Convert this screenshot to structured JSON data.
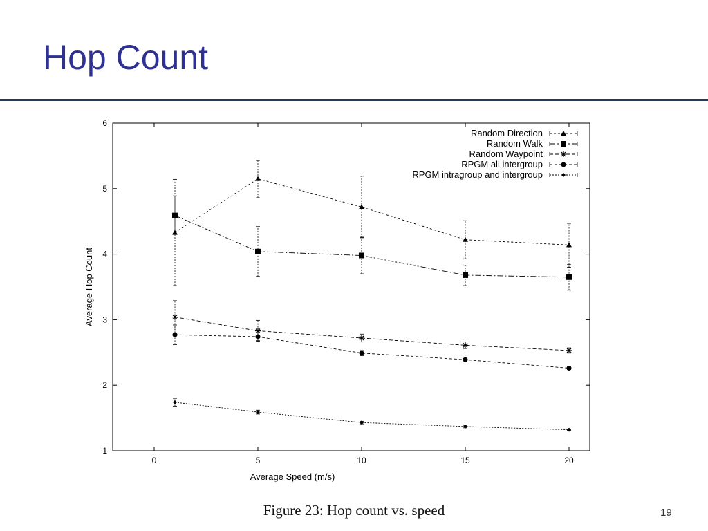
{
  "slide": {
    "title": "Hop Count",
    "caption": "Figure 23: Hop count vs. speed",
    "page_number": "19",
    "title_color": "#2e3192"
  },
  "chart_data": {
    "type": "line",
    "xlabel": "Average Speed (m/s)",
    "ylabel": "Average Hop Count",
    "xlim": [
      -2,
      21
    ],
    "ylim": [
      1,
      6
    ],
    "xticks": [
      0,
      5,
      10,
      15,
      20
    ],
    "yticks": [
      1,
      2,
      3,
      4,
      5,
      6
    ],
    "grid": false,
    "legend_position": "top-right",
    "x": [
      1,
      5,
      10,
      15,
      20
    ],
    "series": [
      {
        "name": "Random Direction",
        "marker": "triangle",
        "dash": "3,3",
        "values": [
          4.33,
          5.15,
          4.72,
          4.22,
          4.14
        ],
        "err_low": [
          3.52,
          4.86,
          4.25,
          3.93,
          3.8
        ],
        "err_high": [
          5.14,
          5.43,
          5.19,
          4.51,
          4.47
        ]
      },
      {
        "name": "Random Walk",
        "marker": "square",
        "dash": "8,3,2,3",
        "values": [
          4.59,
          4.04,
          3.98,
          3.68,
          3.65
        ],
        "err_low": [
          4.3,
          3.66,
          3.7,
          3.52,
          3.45
        ],
        "err_high": [
          4.89,
          4.42,
          4.26,
          3.83,
          3.84
        ]
      },
      {
        "name": "Random Waypoint",
        "marker": "star",
        "dash": "5,3",
        "values": [
          3.04,
          2.83,
          2.72,
          2.61,
          2.53
        ],
        "err_low": [
          2.8,
          2.67,
          2.66,
          2.56,
          2.49
        ],
        "err_high": [
          3.29,
          2.99,
          2.78,
          2.66,
          2.57
        ]
      },
      {
        "name": "RPGM all intergroup",
        "marker": "circle",
        "dash": "4,3",
        "values": [
          2.77,
          2.74,
          2.49,
          2.39,
          2.26
        ],
        "err_low": [
          2.62,
          2.68,
          2.45,
          2.37,
          2.24
        ],
        "err_high": [
          2.92,
          2.8,
          2.53,
          2.41,
          2.28
        ]
      },
      {
        "name": "RPGM intragroup and intergroup",
        "marker": "diamond",
        "dash": "2,2",
        "values": [
          1.74,
          1.59,
          1.43,
          1.37,
          1.32
        ],
        "err_low": [
          1.68,
          1.56,
          1.41,
          1.35,
          1.31
        ],
        "err_high": [
          1.8,
          1.62,
          1.45,
          1.39,
          1.33
        ]
      }
    ]
  }
}
